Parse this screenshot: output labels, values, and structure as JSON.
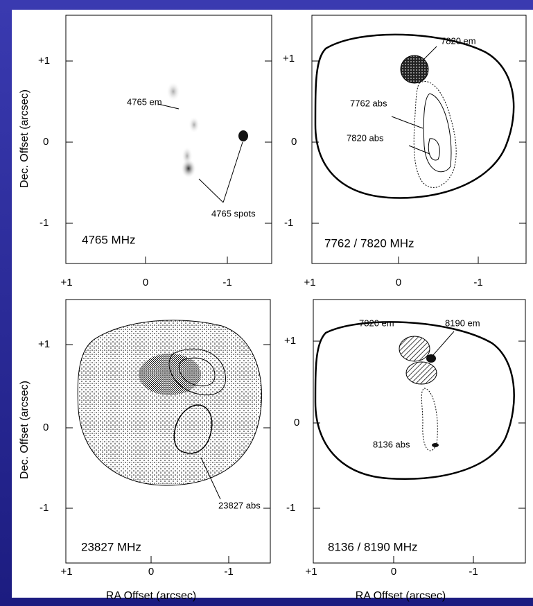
{
  "axis_labels": {
    "y": "Dec. Offset (arcsec)",
    "x": "RA Offset (arcsec)"
  },
  "panels": [
    {
      "label": "4765 MHz",
      "x_ticks": [
        "+1",
        "0",
        "-1"
      ],
      "y_ticks": [
        "+1",
        "0",
        "-1"
      ],
      "annotations": [
        "4765 em",
        "4765 spots"
      ]
    },
    {
      "label": "7762 / 7820  MHz",
      "x_ticks": [
        "+1",
        "0",
        "-1"
      ],
      "y_ticks": [
        "+1",
        "0",
        "-1"
      ],
      "annotations": [
        "7820 em",
        "7762 abs",
        "7820 abs"
      ]
    },
    {
      "label": "23827 MHz",
      "x_ticks": [
        "+1",
        "0",
        "-1"
      ],
      "y_ticks": [
        "+1",
        "0",
        "-1"
      ],
      "annotations": [
        "23827 abs"
      ]
    },
    {
      "label": "8136 / 8190 MHz",
      "x_ticks": [
        "+1",
        "0",
        "-1"
      ],
      "y_ticks": [
        "+1",
        "0",
        "-1"
      ],
      "annotations": [
        "7820 em",
        "8190 em",
        "8136 abs"
      ]
    }
  ]
}
